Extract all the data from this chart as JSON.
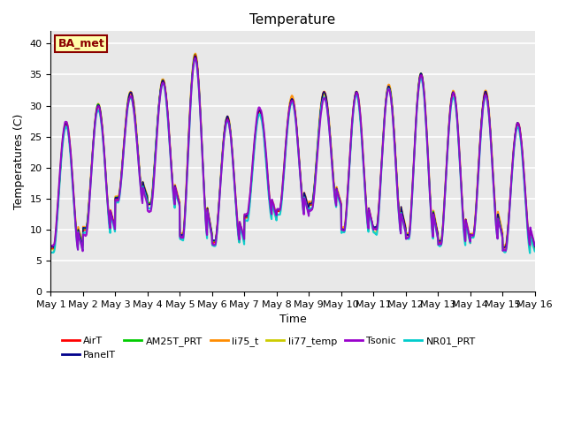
{
  "title": "Temperature",
  "xlabel": "Time",
  "ylabel": "Temperatures (C)",
  "ylim": [
    0,
    42
  ],
  "yticks": [
    0,
    5,
    10,
    15,
    20,
    25,
    30,
    35,
    40
  ],
  "annotation_text": "BA_met",
  "annotation_color": "#8B0000",
  "annotation_bg": "#FFFFAA",
  "series_colors": {
    "AirT": "#FF0000",
    "PanelT": "#00008B",
    "AM25T_PRT": "#00CC00",
    "li75_t": "#FF8C00",
    "li77_temp": "#CCCC00",
    "Tsonic": "#9900CC",
    "NR01_PRT": "#00CCCC"
  },
  "series_order": [
    "AirT",
    "PanelT",
    "AM25T_PRT",
    "li75_t",
    "li77_temp",
    "Tsonic",
    "NR01_PRT"
  ],
  "plot_bg": "#E8E8E8",
  "grid_color": "white",
  "n_points": 1500,
  "days": 15,
  "figsize": [
    6.4,
    4.8
  ],
  "dpi": 100
}
